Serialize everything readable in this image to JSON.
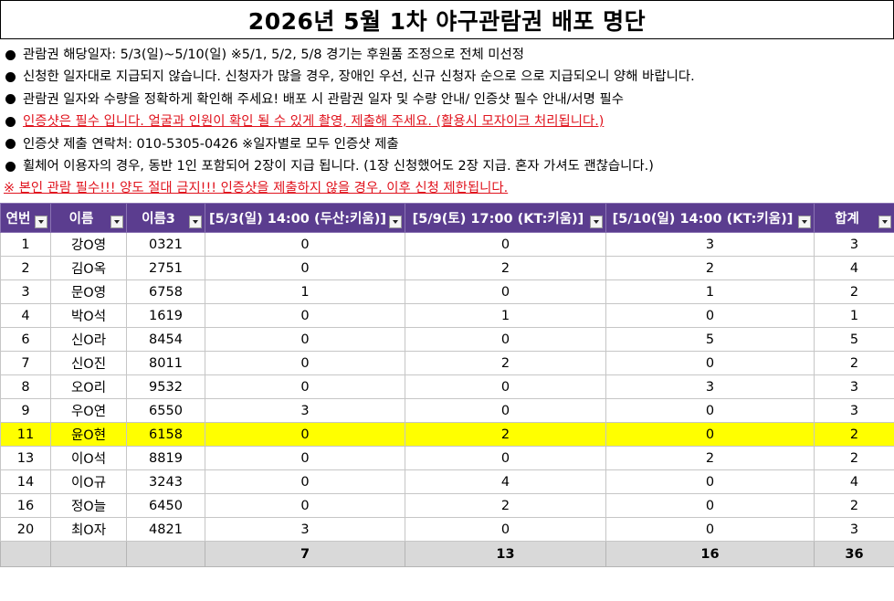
{
  "title": "2026년 5월 1차 야구관람권 배포 명단",
  "notes": [
    "관람권 해당일자: 5/3(일)~5/10(일) ※5/1, 5/2, 5/8 경기는 후원품 조정으로 전체 미선정",
    "신청한 일자대로 지급되지 않습니다. 신청자가 많을 경우, 장애인 우선, 신규 신청자 순으로 으로 지급되오니 양해 바랍니다.",
    "관람권 일자와 수량을 정확하게 확인해 주세요! 배포 시 관람권 일자 및 수량 안내/ 인증샷 필수 안내/서명 필수",
    "인증샷은 필수 입니다. 얼굴과 인원이 확인 될 수 있게 촬영, 제출해 주세요. (활용시 모자이크 처리됩니다.)",
    "인증샷 제출 연락처: 010-5305-0426 ※일자별로 모두 인증샷 제출",
    "휠체어 이용자의 경우, 동반 1인 포함되어 2장이 지급 됩니다. (1장 신청했어도 2장 지급. 혼자 가셔도 괜찮습니다.)"
  ],
  "warning": "※ 본인 관람 필수!!! 양도 절대 금지!!! 인증샷을 제출하지 않을 경우, 이후 신청 제한됩니다.",
  "table": {
    "headers": [
      "연번",
      "이름",
      "이름3",
      "[5/3(일) 14:00 (두산:키움)]",
      "[5/9(토) 17:00 (KT:키움)]",
      "[5/10(일) 14:00 (KT:키움)]",
      "합계"
    ],
    "rows": [
      [
        "1",
        "강O영",
        "0321",
        "0",
        "0",
        "3",
        "3"
      ],
      [
        "2",
        "김O옥",
        "2751",
        "0",
        "2",
        "2",
        "4"
      ],
      [
        "3",
        "문O영",
        "6758",
        "1",
        "0",
        "1",
        "2"
      ],
      [
        "4",
        "박O석",
        "1619",
        "0",
        "1",
        "0",
        "1"
      ],
      [
        "6",
        "신O라",
        "8454",
        "0",
        "0",
        "5",
        "5"
      ],
      [
        "7",
        "신O진",
        "8011",
        "0",
        "2",
        "0",
        "2"
      ],
      [
        "8",
        "오O리",
        "9532",
        "0",
        "0",
        "3",
        "3"
      ],
      [
        "9",
        "우O연",
        "6550",
        "3",
        "0",
        "0",
        "3"
      ],
      [
        "11",
        "윤O현",
        "6158",
        "0",
        "2",
        "0",
        "2"
      ],
      [
        "13",
        "이O석",
        "8819",
        "0",
        "0",
        "2",
        "2"
      ],
      [
        "14",
        "이O규",
        "3243",
        "0",
        "4",
        "0",
        "4"
      ],
      [
        "16",
        "정O늘",
        "6450",
        "0",
        "2",
        "0",
        "2"
      ],
      [
        "20",
        "최O자",
        "4821",
        "3",
        "0",
        "0",
        "3"
      ]
    ],
    "highlighted_row_index": 8,
    "totals": [
      "",
      "",
      "",
      "7",
      "13",
      "16",
      "36"
    ]
  },
  "colors": {
    "header_bg": "#5b3d8f",
    "highlight": "#ffff00",
    "total_bg": "#d9d9d9",
    "warning_text": "#e0141e"
  }
}
